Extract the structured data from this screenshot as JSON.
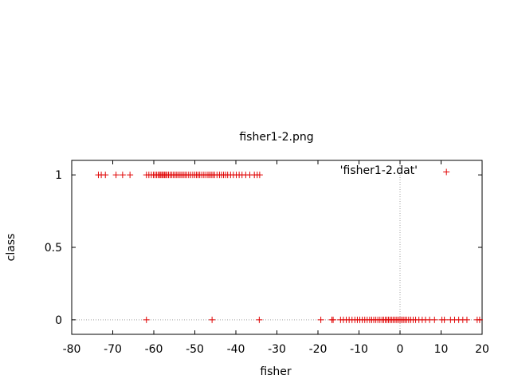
{
  "chart_data": {
    "type": "scatter",
    "title": "fisher1-2.png",
    "xlabel": "fisher",
    "ylabel": "class",
    "xlim": [
      -80,
      20
    ],
    "ylim": [
      -0.1,
      1.1
    ],
    "x_ticks": [
      "-80",
      "-70",
      "-60",
      "-50",
      "-40",
      "-30",
      "-20",
      "-10",
      "0",
      "10",
      "20"
    ],
    "y_ticks": [
      "0",
      "0.5",
      "1"
    ],
    "grid": "zero-axes-dotted",
    "legend": {
      "placement": "top-right",
      "label": "'fisher1-2.dat'"
    },
    "series": [
      {
        "name": "'fisher1-2.dat'",
        "color": "#e00000",
        "marker": "plus",
        "points": [
          [
            -73.5,
            1
          ],
          [
            -72.8,
            1
          ],
          [
            -71.8,
            1
          ],
          [
            -69.2,
            1
          ],
          [
            -67.6,
            1
          ],
          [
            -65.8,
            1
          ],
          [
            -61.8,
            1
          ],
          [
            -61.2,
            1
          ],
          [
            -60.6,
            1
          ],
          [
            -60.1,
            1
          ],
          [
            -59.7,
            1
          ],
          [
            -59.3,
            1
          ],
          [
            -58.9,
            1
          ],
          [
            -58.6,
            1
          ],
          [
            -58.3,
            1
          ],
          [
            -58.0,
            1
          ],
          [
            -57.7,
            1
          ],
          [
            -57.4,
            1
          ],
          [
            -57.1,
            1
          ],
          [
            -56.8,
            1
          ],
          [
            -56.4,
            1
          ],
          [
            -56.0,
            1
          ],
          [
            -55.6,
            1
          ],
          [
            -55.2,
            1
          ],
          [
            -54.8,
            1
          ],
          [
            -54.4,
            1
          ],
          [
            -54.0,
            1
          ],
          [
            -53.6,
            1
          ],
          [
            -53.2,
            1
          ],
          [
            -52.8,
            1
          ],
          [
            -52.4,
            1
          ],
          [
            -52.0,
            1
          ],
          [
            -51.5,
            1
          ],
          [
            -51.0,
            1
          ],
          [
            -50.5,
            1
          ],
          [
            -50.0,
            1
          ],
          [
            -49.6,
            1
          ],
          [
            -49.2,
            1
          ],
          [
            -48.8,
            1
          ],
          [
            -48.3,
            1
          ],
          [
            -47.8,
            1
          ],
          [
            -47.3,
            1
          ],
          [
            -46.8,
            1
          ],
          [
            -46.4,
            1
          ],
          [
            -46.0,
            1
          ],
          [
            -45.6,
            1
          ],
          [
            -45.2,
            1
          ],
          [
            -44.6,
            1
          ],
          [
            -44.0,
            1
          ],
          [
            -43.5,
            1
          ],
          [
            -43.0,
            1
          ],
          [
            -42.5,
            1
          ],
          [
            -42.0,
            1
          ],
          [
            -41.3,
            1
          ],
          [
            -40.6,
            1
          ],
          [
            -39.9,
            1
          ],
          [
            -39.2,
            1
          ],
          [
            -38.5,
            1
          ],
          [
            -37.6,
            1
          ],
          [
            -36.6,
            1
          ],
          [
            -35.5,
            1
          ],
          [
            -34.8,
            1
          ],
          [
            -34.2,
            1
          ],
          [
            11.3,
            1.02
          ],
          [
            -61.8,
            0
          ],
          [
            -45.8,
            0
          ],
          [
            -34.3,
            0
          ],
          [
            -19.3,
            0
          ],
          [
            -16.6,
            0
          ],
          [
            -16.3,
            0
          ],
          [
            -14.5,
            0
          ],
          [
            -13.8,
            0
          ],
          [
            -13.1,
            0
          ],
          [
            -12.4,
            0
          ],
          [
            -11.7,
            0
          ],
          [
            -11.0,
            0
          ],
          [
            -10.4,
            0
          ],
          [
            -9.8,
            0
          ],
          [
            -9.2,
            0
          ],
          [
            -8.6,
            0
          ],
          [
            -8.0,
            0
          ],
          [
            -7.4,
            0
          ],
          [
            -6.9,
            0
          ],
          [
            -6.4,
            0
          ],
          [
            -5.9,
            0
          ],
          [
            -5.4,
            0
          ],
          [
            -4.9,
            0
          ],
          [
            -4.4,
            0
          ],
          [
            -4.0,
            0
          ],
          [
            -3.6,
            0
          ],
          [
            -3.2,
            0
          ],
          [
            -2.8,
            0
          ],
          [
            -2.4,
            0
          ],
          [
            -2.0,
            0
          ],
          [
            -1.6,
            0
          ],
          [
            -1.2,
            0
          ],
          [
            -0.8,
            0
          ],
          [
            -0.4,
            0
          ],
          [
            0.0,
            0
          ],
          [
            0.4,
            0
          ],
          [
            0.8,
            0
          ],
          [
            1.2,
            0
          ],
          [
            1.6,
            0
          ],
          [
            2.1,
            0
          ],
          [
            2.6,
            0
          ],
          [
            3.2,
            0
          ],
          [
            3.8,
            0
          ],
          [
            4.6,
            0
          ],
          [
            5.4,
            0
          ],
          [
            6.2,
            0
          ],
          [
            7.2,
            0
          ],
          [
            8.4,
            0
          ],
          [
            10.2,
            0
          ],
          [
            10.8,
            0
          ],
          [
            12.3,
            0
          ],
          [
            13.3,
            0
          ],
          [
            14.3,
            0
          ],
          [
            15.3,
            0
          ],
          [
            16.3,
            0
          ],
          [
            18.8,
            0
          ],
          [
            19.4,
            0
          ]
        ]
      }
    ]
  }
}
